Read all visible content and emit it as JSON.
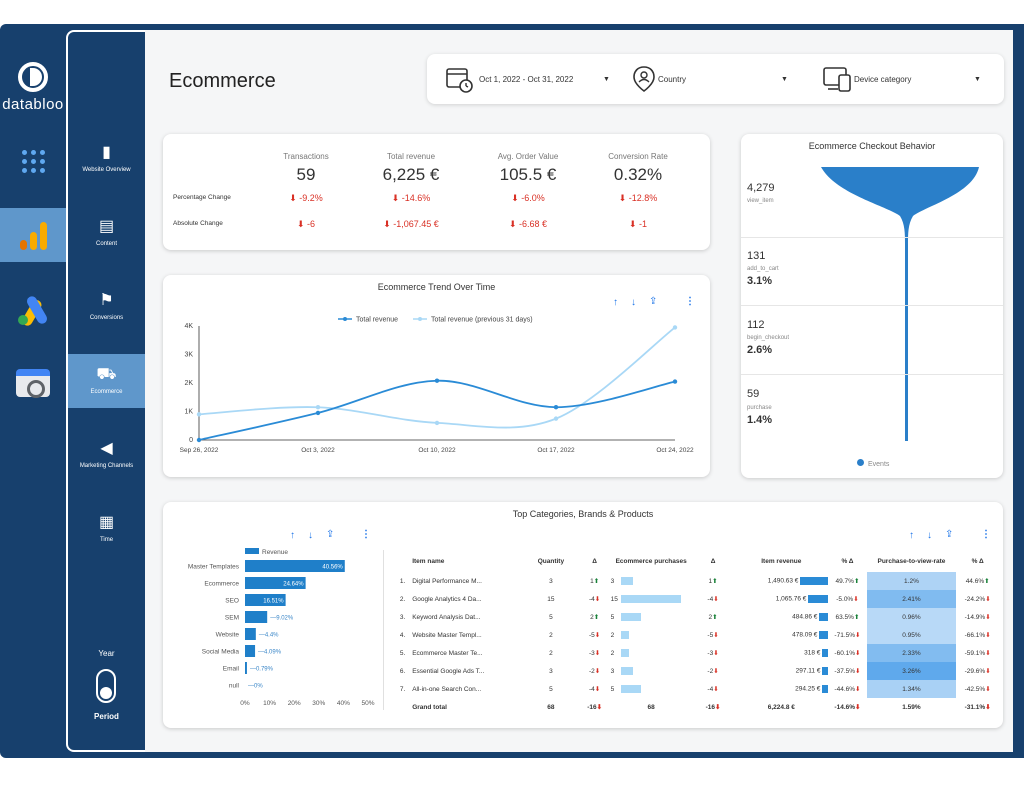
{
  "brand": {
    "name": "databloo"
  },
  "subnav": {
    "items": [
      {
        "label": "Website Overview",
        "icon": "bar-chart-icon"
      },
      {
        "label": "Content",
        "icon": "document-icon"
      },
      {
        "label": "Conversions",
        "icon": "checkered-flag-icon"
      },
      {
        "label": "Ecommerce",
        "icon": "cart-icon"
      },
      {
        "label": "Marketing Channels",
        "icon": "megaphone-icon"
      },
      {
        "label": "Time",
        "icon": "calendar-icon"
      }
    ],
    "year_label": "Year",
    "period_label": "Period"
  },
  "header": {
    "title": "Ecommerce",
    "date_range": "Oct 1, 2022 - Oct 31, 2022",
    "country": "Country",
    "device": "Device category"
  },
  "kpi": {
    "columns": [
      {
        "label": "Transactions",
        "value": "59",
        "pct": "-9.2%",
        "abs": "-6"
      },
      {
        "label": "Total revenue",
        "value": "6,225 €",
        "pct": "-14.6%",
        "abs": "-1,067.45 €"
      },
      {
        "label": "Avg. Order Value",
        "value": "105.5 €",
        "pct": "-6.0%",
        "abs": "-6.68 €"
      },
      {
        "label": "Conversion Rate",
        "value": "0.32%",
        "pct": "-12.8%",
        "abs": "-1"
      }
    ],
    "row_pct_label": "Percentage Change",
    "row_abs_label": "Absolute Change"
  },
  "funnel": {
    "title": "Ecommerce Checkout Behavior",
    "steps": [
      {
        "num": "4,279",
        "label": "view_item",
        "pct": ""
      },
      {
        "num": "131",
        "label": "add_to_cart",
        "pct": "3.1%"
      },
      {
        "num": "112",
        "label": "begin_checkout",
        "pct": "2.6%"
      },
      {
        "num": "59",
        "label": "purchase",
        "pct": "1.4%"
      }
    ],
    "legend": "Events"
  },
  "chart_data": [
    {
      "type": "line",
      "title": "Ecommerce Trend Over Time",
      "x": [
        "Sep 26, 2022",
        "Oct 3, 2022",
        "Oct 10, 2022",
        "Oct 17, 2022",
        "Oct 24, 2022"
      ],
      "yticks": [
        "0",
        "1K",
        "2K",
        "3K",
        "4K"
      ],
      "ylim": [
        0,
        4000
      ],
      "series": [
        {
          "name": "Total revenue",
          "color": "#2a8bd6",
          "values": [
            0,
            950,
            2080,
            1150,
            2050
          ]
        },
        {
          "name": "Total revenue (previous 31 days)",
          "color": "#a9d8f6",
          "values": [
            900,
            1150,
            600,
            750,
            3950
          ]
        }
      ],
      "legend": "top"
    },
    {
      "type": "bar",
      "title": "",
      "legend": "Revenue",
      "categories": [
        "Master Templates",
        "Ecommerce",
        "SEO",
        "SEM",
        "Website",
        "Social Media",
        "Email",
        "null"
      ],
      "values": [
        40.56,
        24.64,
        16.51,
        9.02,
        4.4,
        4.09,
        0.79,
        0
      ],
      "labels": [
        "40.56%",
        "24.64%",
        "16.51%",
        "9.02%",
        "4.4%",
        "4.09%",
        "0.79%",
        "0%"
      ],
      "xticks": [
        "0%",
        "10%",
        "20%",
        "30%",
        "40%",
        "50%"
      ],
      "xlim": [
        0,
        50
      ],
      "color": "#1f7fc9"
    }
  ],
  "top_table": {
    "title": "Top Categories, Brands & Products",
    "headers": [
      "Item name",
      "Quantity",
      "Δ",
      "Ecommerce purchases",
      "Δ",
      "Item revenue",
      "% Δ",
      "Purchase-to-view-rate",
      "% Δ"
    ],
    "rows": [
      {
        "idx": "1.",
        "name": "Digital Performance M...",
        "qty": "3",
        "qd": "1",
        "qdir": "up",
        "ep": "3",
        "epv": 3,
        "epd": "1",
        "epdir": "up",
        "rev": "1,490.63 €",
        "revv": 1490.63,
        "revp": "49.7%",
        "revdir": "up",
        "rate": "1.2%",
        "ratev": 1.2,
        "ratep": "44.6%",
        "ratedir": "up"
      },
      {
        "idx": "2.",
        "name": "Google Analytics 4 Da...",
        "qty": "15",
        "qd": "-4",
        "qdir": "dn",
        "ep": "15",
        "epv": 15,
        "epd": "-4",
        "epdir": "dn",
        "rev": "1,065.76 €",
        "revv": 1065.76,
        "revp": "-5.0%",
        "revdir": "dn",
        "rate": "2.41%",
        "ratev": 2.41,
        "ratep": "-24.2%",
        "ratedir": "dn"
      },
      {
        "idx": "3.",
        "name": "Keyword Analysis Dat...",
        "qty": "5",
        "qd": "2",
        "qdir": "up",
        "ep": "5",
        "epv": 5,
        "epd": "2",
        "epdir": "up",
        "rev": "484.86 €",
        "revv": 484.86,
        "revp": "63.5%",
        "revdir": "up",
        "rate": "0.96%",
        "ratev": 0.96,
        "ratep": "-14.9%",
        "ratedir": "dn"
      },
      {
        "idx": "4.",
        "name": "Website Master Templ...",
        "qty": "2",
        "qd": "-5",
        "qdir": "dn",
        "ep": "2",
        "epv": 2,
        "epd": "-5",
        "epdir": "dn",
        "rev": "478.09 €",
        "revv": 478.09,
        "revp": "-71.5%",
        "revdir": "dn",
        "rate": "0.95%",
        "ratev": 0.95,
        "ratep": "-66.1%",
        "ratedir": "dn"
      },
      {
        "idx": "5.",
        "name": "Ecommerce Master Te...",
        "qty": "2",
        "qd": "-3",
        "qdir": "dn",
        "ep": "2",
        "epv": 2,
        "epd": "-3",
        "epdir": "dn",
        "rev": "318 €",
        "revv": 318,
        "revp": "-60.1%",
        "revdir": "dn",
        "rate": "2.33%",
        "ratev": 2.33,
        "ratep": "-59.1%",
        "ratedir": "dn"
      },
      {
        "idx": "6.",
        "name": "Essential Google Ads T...",
        "qty": "3",
        "qd": "-2",
        "qdir": "dn",
        "ep": "3",
        "epv": 3,
        "epd": "-2",
        "epdir": "dn",
        "rev": "297.11 €",
        "revv": 297.11,
        "revp": "-37.5%",
        "revdir": "dn",
        "rate": "3.26%",
        "ratev": 3.26,
        "ratep": "-29.6%",
        "ratedir": "dn"
      },
      {
        "idx": "7.",
        "name": "All-in-one Search Con...",
        "qty": "5",
        "qd": "-4",
        "qdir": "dn",
        "ep": "5",
        "epv": 5,
        "epd": "-4",
        "epdir": "dn",
        "rev": "294.25 €",
        "revv": 294.25,
        "revp": "-44.6%",
        "revdir": "dn",
        "rate": "1.34%",
        "ratev": 1.34,
        "ratep": "-42.5%",
        "ratedir": "dn"
      }
    ],
    "total": {
      "label": "Grand total",
      "qty": "68",
      "qd": "-16",
      "ep": "68",
      "epd": "-16",
      "rev": "6,224.8 €",
      "revp": "-14.6%",
      "rate": "1.59%",
      "ratep": "-31.1%"
    }
  }
}
